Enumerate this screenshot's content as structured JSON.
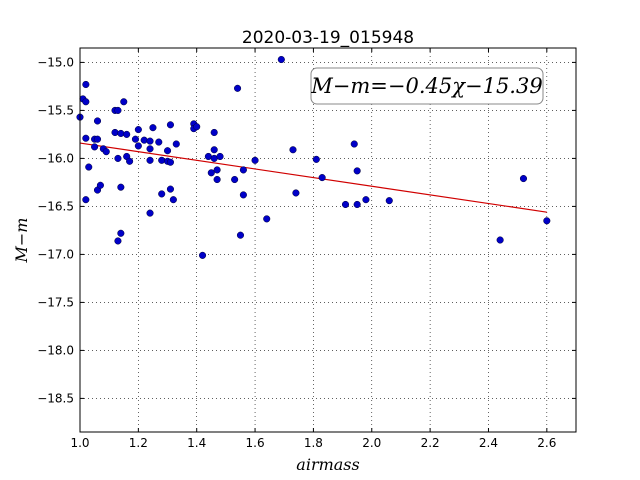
{
  "chart_data": {
    "type": "scatter",
    "title": "2020-03-19_015948",
    "xlabel": "airmass",
    "ylabel": "M−m",
    "xlim": [
      1.0,
      2.7
    ],
    "ylim": [
      -18.85,
      -14.85
    ],
    "y_inverted": true,
    "grid": true,
    "x_ticks": [
      1.0,
      1.2,
      1.4,
      1.6,
      1.8,
      2.0,
      2.2,
      2.4,
      2.6
    ],
    "x_tick_labels": [
      "1.0",
      "1.2",
      "1.4",
      "1.6",
      "1.8",
      "2.0",
      "2.2",
      "2.4",
      "2.6"
    ],
    "y_ticks": [
      -15.0,
      -15.5,
      -16.0,
      -16.5,
      -17.0,
      -17.5,
      -18.0,
      -18.5
    ],
    "y_tick_labels": [
      "−15.0",
      "−15.5",
      "−16.0",
      "−16.5",
      "−17.0",
      "−17.5",
      "−18.0",
      "−18.5"
    ],
    "annotation": "M−m=−0.45χ−15.39",
    "fit_line": {
      "slope": -0.45,
      "intercept": -15.39,
      "x_range": [
        1.0,
        2.6
      ],
      "color": "#d00000"
    },
    "marker_color": "#0000c8",
    "points": [
      {
        "x": 1.0,
        "y": -15.57
      },
      {
        "x": 1.01,
        "y": -15.38
      },
      {
        "x": 1.02,
        "y": -15.23
      },
      {
        "x": 1.02,
        "y": -15.41
      },
      {
        "x": 1.02,
        "y": -15.79
      },
      {
        "x": 1.02,
        "y": -16.43
      },
      {
        "x": 1.03,
        "y": -16.09
      },
      {
        "x": 1.05,
        "y": -15.8
      },
      {
        "x": 1.05,
        "y": -15.88
      },
      {
        "x": 1.06,
        "y": -15.61
      },
      {
        "x": 1.06,
        "y": -15.8
      },
      {
        "x": 1.06,
        "y": -16.33
      },
      {
        "x": 1.07,
        "y": -16.28
      },
      {
        "x": 1.08,
        "y": -15.9
      },
      {
        "x": 1.09,
        "y": -15.93
      },
      {
        "x": 1.12,
        "y": -15.5
      },
      {
        "x": 1.12,
        "y": -15.73
      },
      {
        "x": 1.13,
        "y": -15.5
      },
      {
        "x": 1.13,
        "y": -16.0
      },
      {
        "x": 1.13,
        "y": -16.86
      },
      {
        "x": 1.14,
        "y": -15.74
      },
      {
        "x": 1.14,
        "y": -16.3
      },
      {
        "x": 1.14,
        "y": -16.78
      },
      {
        "x": 1.15,
        "y": -15.41
      },
      {
        "x": 1.16,
        "y": -15.75
      },
      {
        "x": 1.16,
        "y": -15.98
      },
      {
        "x": 1.17,
        "y": -16.03
      },
      {
        "x": 1.19,
        "y": -15.8
      },
      {
        "x": 1.2,
        "y": -15.7
      },
      {
        "x": 1.2,
        "y": -15.87
      },
      {
        "x": 1.22,
        "y": -15.81
      },
      {
        "x": 1.24,
        "y": -15.82
      },
      {
        "x": 1.24,
        "y": -15.9
      },
      {
        "x": 1.24,
        "y": -16.02
      },
      {
        "x": 1.24,
        "y": -16.57
      },
      {
        "x": 1.25,
        "y": -15.68
      },
      {
        "x": 1.27,
        "y": -15.83
      },
      {
        "x": 1.28,
        "y": -16.02
      },
      {
        "x": 1.28,
        "y": -16.37
      },
      {
        "x": 1.3,
        "y": -15.92
      },
      {
        "x": 1.3,
        "y": -16.03
      },
      {
        "x": 1.31,
        "y": -15.65
      },
      {
        "x": 1.31,
        "y": -16.04
      },
      {
        "x": 1.31,
        "y": -16.32
      },
      {
        "x": 1.32,
        "y": -16.43
      },
      {
        "x": 1.33,
        "y": -15.85
      },
      {
        "x": 1.39,
        "y": -15.64
      },
      {
        "x": 1.39,
        "y": -15.69
      },
      {
        "x": 1.4,
        "y": -15.67
      },
      {
        "x": 1.42,
        "y": -17.01
      },
      {
        "x": 1.44,
        "y": -15.98
      },
      {
        "x": 1.45,
        "y": -16.15
      },
      {
        "x": 1.46,
        "y": -15.73
      },
      {
        "x": 1.46,
        "y": -15.91
      },
      {
        "x": 1.46,
        "y": -16.0
      },
      {
        "x": 1.47,
        "y": -16.12
      },
      {
        "x": 1.47,
        "y": -16.22
      },
      {
        "x": 1.48,
        "y": -15.98
      },
      {
        "x": 1.53,
        "y": -16.22
      },
      {
        "x": 1.54,
        "y": -15.27
      },
      {
        "x": 1.55,
        "y": -16.8
      },
      {
        "x": 1.56,
        "y": -16.12
      },
      {
        "x": 1.56,
        "y": -16.38
      },
      {
        "x": 1.6,
        "y": -16.02
      },
      {
        "x": 1.64,
        "y": -16.63
      },
      {
        "x": 1.69,
        "y": -14.97
      },
      {
        "x": 1.73,
        "y": -15.91
      },
      {
        "x": 1.74,
        "y": -16.36
      },
      {
        "x": 1.81,
        "y": -16.01
      },
      {
        "x": 1.83,
        "y": -16.2
      },
      {
        "x": 1.91,
        "y": -16.48
      },
      {
        "x": 1.94,
        "y": -15.85
      },
      {
        "x": 1.95,
        "y": -16.13
      },
      {
        "x": 1.95,
        "y": -16.48
      },
      {
        "x": 1.98,
        "y": -16.43
      },
      {
        "x": 2.06,
        "y": -16.44
      },
      {
        "x": 2.44,
        "y": -16.85
      },
      {
        "x": 2.52,
        "y": -16.21
      },
      {
        "x": 2.6,
        "y": -16.65
      }
    ]
  }
}
